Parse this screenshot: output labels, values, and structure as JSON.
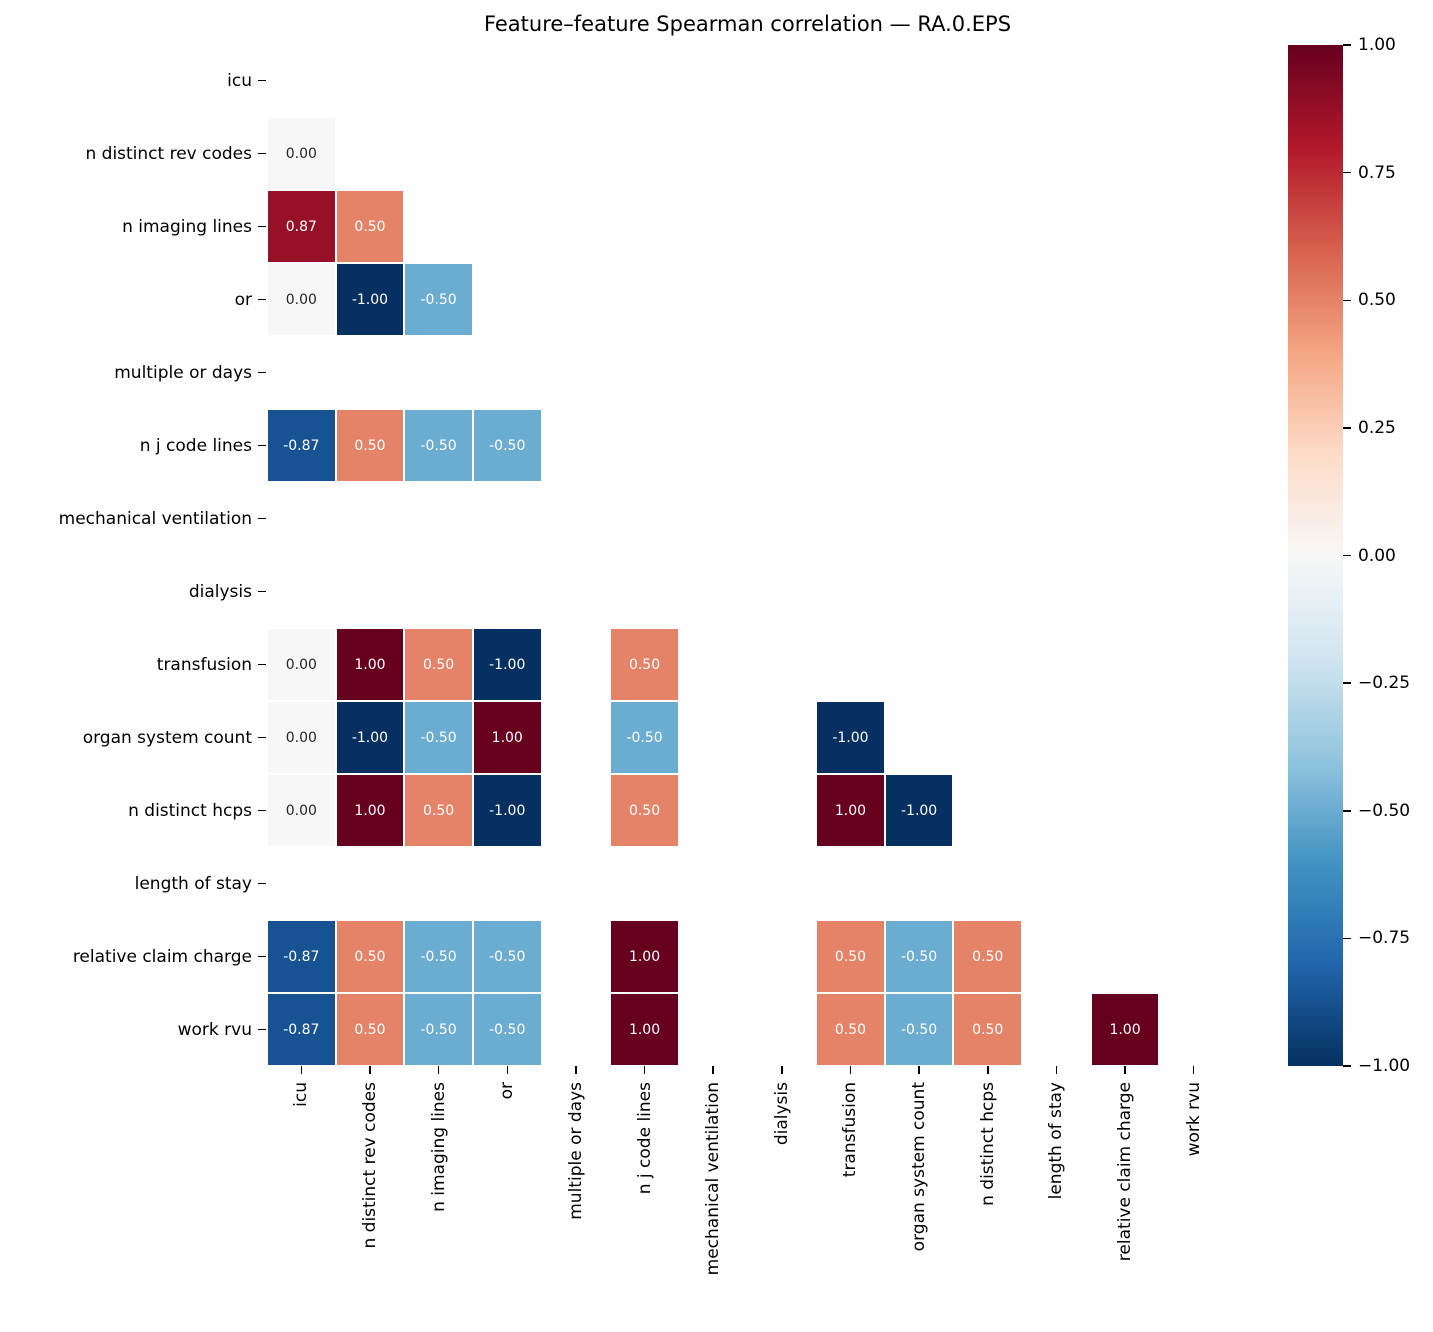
{
  "chart_data": {
    "type": "heatmap",
    "title": "Feature–feature Spearman correlation — RA.0.EPS",
    "labels": [
      "icu",
      "n distinct rev codes",
      "n imaging lines",
      "or",
      "multiple or days",
      "n j code lines",
      "mechanical ventilation",
      "dialysis",
      "transfusion",
      "organ system count",
      "n distinct hcps",
      "length of stay",
      "relative claim charge",
      "work rvu"
    ],
    "values": [
      [
        null,
        null,
        null,
        null,
        null,
        null,
        null,
        null,
        null,
        null,
        null,
        null,
        null,
        null
      ],
      [
        0.0,
        null,
        null,
        null,
        null,
        null,
        null,
        null,
        null,
        null,
        null,
        null,
        null,
        null
      ],
      [
        0.87,
        0.5,
        null,
        null,
        null,
        null,
        null,
        null,
        null,
        null,
        null,
        null,
        null,
        null
      ],
      [
        0.0,
        -1.0,
        -0.5,
        null,
        null,
        null,
        null,
        null,
        null,
        null,
        null,
        null,
        null,
        null
      ],
      [
        null,
        null,
        null,
        null,
        null,
        null,
        null,
        null,
        null,
        null,
        null,
        null,
        null,
        null
      ],
      [
        -0.87,
        0.5,
        -0.5,
        -0.5,
        null,
        null,
        null,
        null,
        null,
        null,
        null,
        null,
        null,
        null
      ],
      [
        null,
        null,
        null,
        null,
        null,
        null,
        null,
        null,
        null,
        null,
        null,
        null,
        null,
        null
      ],
      [
        null,
        null,
        null,
        null,
        null,
        null,
        null,
        null,
        null,
        null,
        null,
        null,
        null,
        null
      ],
      [
        0.0,
        1.0,
        0.5,
        -1.0,
        null,
        0.5,
        null,
        null,
        null,
        null,
        null,
        null,
        null,
        null
      ],
      [
        0.0,
        -1.0,
        -0.5,
        1.0,
        null,
        -0.5,
        null,
        null,
        -1.0,
        null,
        null,
        null,
        null,
        null
      ],
      [
        0.0,
        1.0,
        0.5,
        -1.0,
        null,
        0.5,
        null,
        null,
        1.0,
        -1.0,
        null,
        null,
        null,
        null
      ],
      [
        null,
        null,
        null,
        null,
        null,
        null,
        null,
        null,
        null,
        null,
        null,
        null,
        null,
        null
      ],
      [
        -0.87,
        0.5,
        -0.5,
        -0.5,
        null,
        1.0,
        null,
        null,
        0.5,
        -0.5,
        0.5,
        null,
        null,
        null
      ],
      [
        -0.87,
        0.5,
        -0.5,
        -0.5,
        null,
        1.0,
        null,
        null,
        0.5,
        -0.5,
        0.5,
        null,
        1.0,
        null
      ]
    ],
    "mask": "upper triangle and diagonal hidden",
    "vmin": -1.0,
    "vmax": 1.0,
    "annot_format": "two decimals",
    "colormap_name": "RdBu_r",
    "colormap_stops": [
      "#053061",
      "#2166ac",
      "#4393c3",
      "#92c5de",
      "#d1e5f0",
      "#f7f7f7",
      "#fddbc7",
      "#f4a582",
      "#d6604d",
      "#b2182b",
      "#67001f"
    ],
    "annot_dark_text_color": "#262626",
    "annot_light_text_color": "#ffffff",
    "gridline_color": "#ffffff",
    "legend_position": "right colorbar",
    "grid": "off",
    "colorbar_ticks": [
      {
        "value": 1.0,
        "label": "1.00"
      },
      {
        "value": 0.75,
        "label": "0.75"
      },
      {
        "value": 0.5,
        "label": "0.50"
      },
      {
        "value": 0.25,
        "label": "0.25"
      },
      {
        "value": 0.0,
        "label": "0.00"
      },
      {
        "value": -0.25,
        "label": "−0.25"
      },
      {
        "value": -0.5,
        "label": "−0.50"
      },
      {
        "value": -0.75,
        "label": "−0.75"
      },
      {
        "value": -1.0,
        "label": "−1.00"
      }
    ]
  }
}
